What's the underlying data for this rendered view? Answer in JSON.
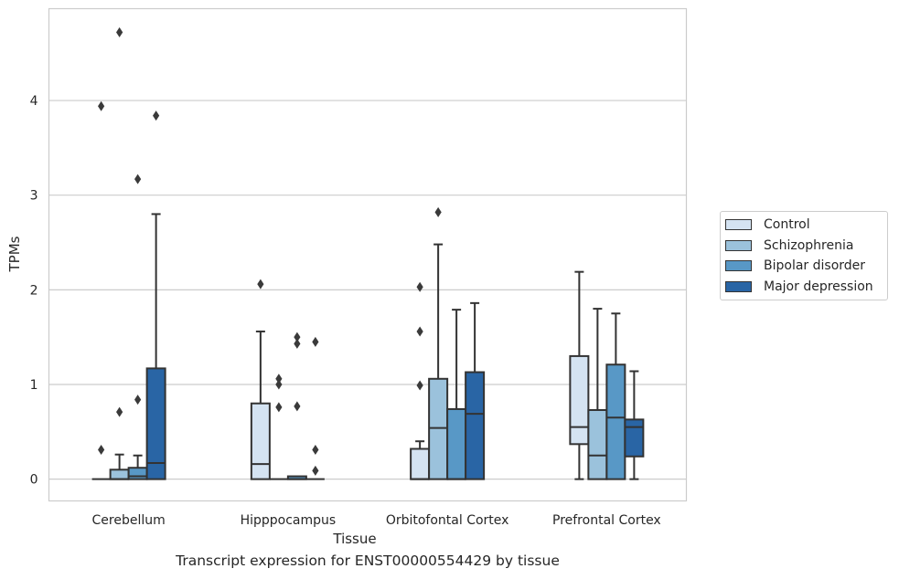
{
  "chart_data": {
    "type": "box",
    "xlabel": "Tissue",
    "ylabel": "TPMs",
    "categories": [
      "Cerebellum",
      "Hipppocampus",
      "Orbitofontal Cortex",
      "Prefrontal Cortex"
    ],
    "ylim": [
      -0.23,
      4.97
    ],
    "yticks": [
      0,
      1,
      2,
      3,
      4
    ],
    "grid": "horizontal",
    "legend_position": "right",
    "series": [
      {
        "name": "Control",
        "color": "#d4e3f2",
        "boxes": [
          {
            "min": 0,
            "q1": 0,
            "median": 0,
            "q3": 0,
            "max": 0,
            "outliers": [
              0.31,
              3.94
            ]
          },
          {
            "min": 0,
            "q1": 0,
            "median": 0.16,
            "q3": 0.8,
            "max": 1.56,
            "outliers": [
              2.06
            ]
          },
          {
            "min": 0,
            "q1": 0,
            "median": 0,
            "q3": 0.32,
            "max": 0.4,
            "outliers": [
              0.99,
              1.56,
              2.03
            ]
          },
          {
            "min": 0,
            "q1": 0.37,
            "median": 0.55,
            "q3": 1.3,
            "max": 2.19,
            "outliers": []
          }
        ]
      },
      {
        "name": "Schizophrenia",
        "color": "#9bc2dc",
        "boxes": [
          {
            "min": 0,
            "q1": 0,
            "median": 0,
            "q3": 0.1,
            "max": 0.26,
            "outliers": [
              0.71,
              4.72
            ]
          },
          {
            "min": 0,
            "q1": 0,
            "median": 0,
            "q3": 0,
            "max": 0,
            "outliers": [
              0.76,
              1.0,
              1.06
            ]
          },
          {
            "min": 0,
            "q1": 0,
            "median": 0.54,
            "q3": 1.06,
            "max": 2.48,
            "outliers": [
              2.82
            ]
          },
          {
            "min": 0,
            "q1": 0,
            "median": 0.25,
            "q3": 0.73,
            "max": 1.8,
            "outliers": []
          }
        ]
      },
      {
        "name": "Bipolar disorder",
        "color": "#5898c6",
        "boxes": [
          {
            "min": 0,
            "q1": 0,
            "median": 0.03,
            "q3": 0.12,
            "max": 0.25,
            "outliers": [
              0.84,
              3.17
            ]
          },
          {
            "min": 0,
            "q1": 0,
            "median": 0,
            "q3": 0.03,
            "max": 0.03,
            "outliers": [
              0.77,
              1.43,
              1.5
            ]
          },
          {
            "min": 0,
            "q1": 0,
            "median": 0,
            "q3": 0.74,
            "max": 1.79,
            "outliers": []
          },
          {
            "min": 0,
            "q1": 0,
            "median": 0.65,
            "q3": 1.21,
            "max": 1.75,
            "outliers": []
          }
        ]
      },
      {
        "name": "Major depression",
        "color": "#2965a5",
        "boxes": [
          {
            "min": 0,
            "q1": 0,
            "median": 0.17,
            "q3": 1.17,
            "max": 2.8,
            "outliers": [
              3.84
            ]
          },
          {
            "min": 0,
            "q1": 0,
            "median": 0,
            "q3": 0,
            "max": 0,
            "outliers": [
              0.09,
              0.31,
              1.45
            ]
          },
          {
            "min": 0,
            "q1": 0,
            "median": 0.69,
            "q3": 1.13,
            "max": 1.86,
            "outliers": []
          },
          {
            "min": 0,
            "q1": 0.24,
            "median": 0.55,
            "q3": 0.63,
            "max": 1.14,
            "outliers": []
          }
        ]
      }
    ]
  },
  "caption": "Transcript expression for ENST00000554429 by tissue"
}
